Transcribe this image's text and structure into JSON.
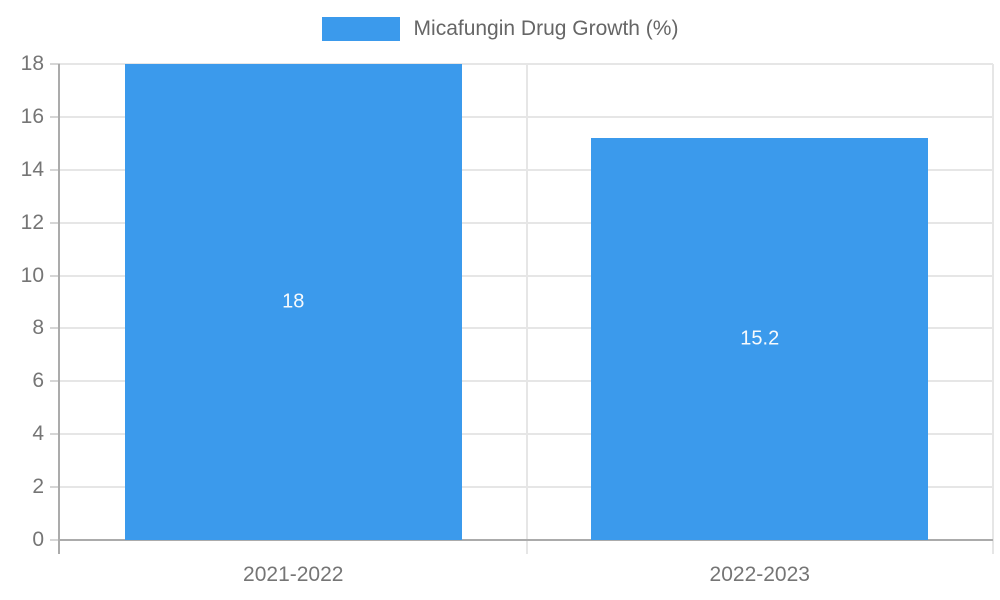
{
  "chart_data": {
    "type": "bar",
    "title": "",
    "legend": {
      "label": "Micafungin Drug Growth (%)",
      "position": "top"
    },
    "categories": [
      "2021-2022",
      "2022-2023"
    ],
    "series": [
      {
        "name": "Micafungin Drug Growth (%)",
        "values": [
          18,
          15.2
        ]
      }
    ],
    "data_labels": [
      "18",
      "15.2"
    ],
    "xlabel": "",
    "ylabel": "",
    "ylim": [
      0,
      18
    ],
    "ytick_step": 2,
    "ytick_labels": [
      "0",
      "2",
      "4",
      "6",
      "8",
      "10",
      "12",
      "14",
      "16",
      "18"
    ],
    "grid": true,
    "colors": {
      "bar": "#3B9AEC",
      "data_label": "#F7FAFC",
      "grid": "#E6E6E6",
      "axis": "#ABABAB",
      "tick_label": "#757575",
      "legend_text": "#666666",
      "background": "#FFFFFF"
    }
  }
}
